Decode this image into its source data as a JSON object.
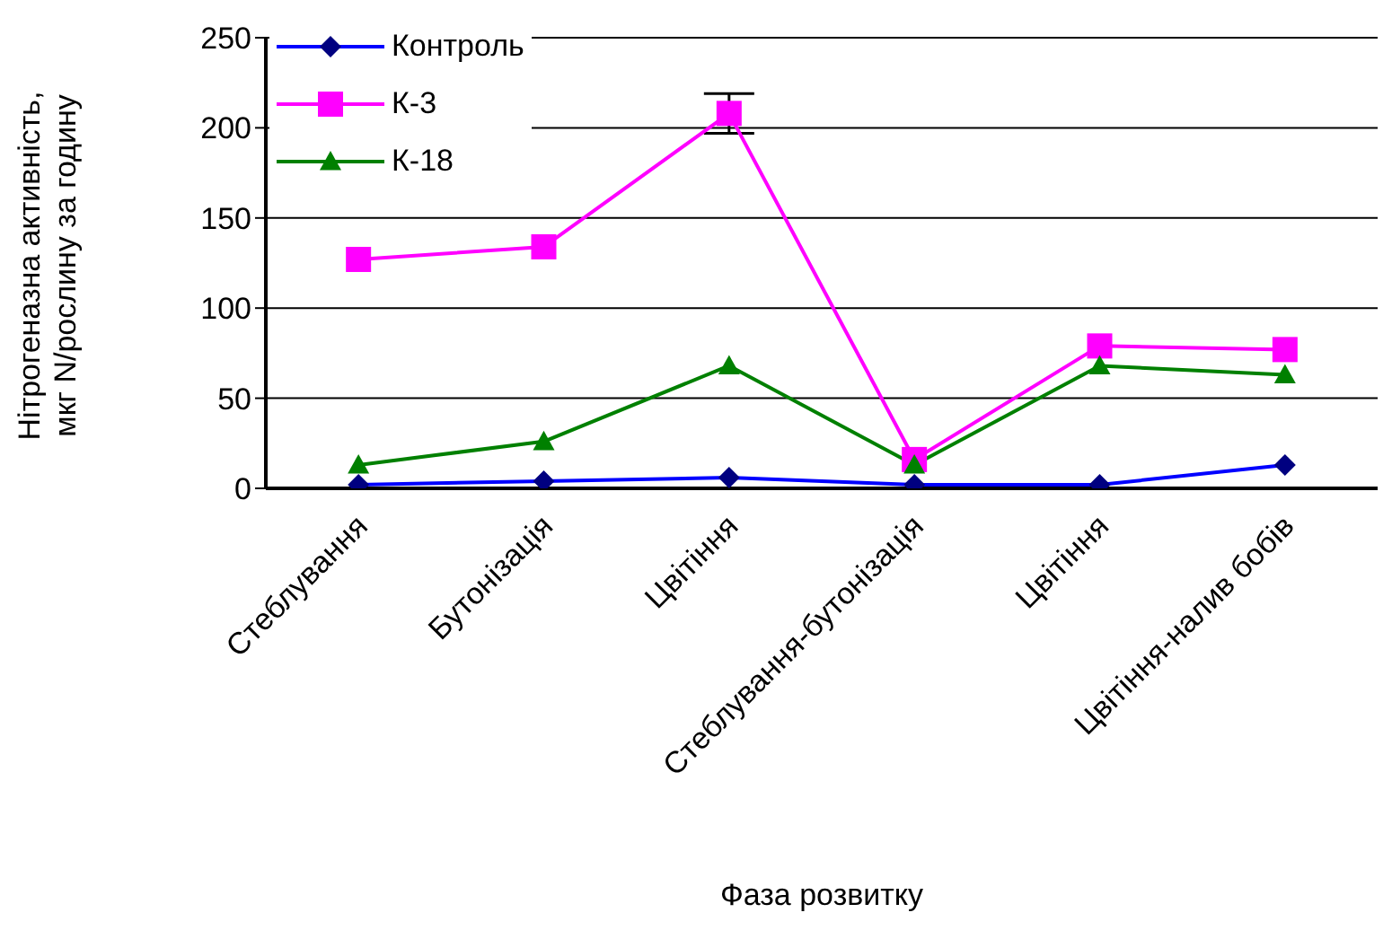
{
  "chart_data": {
    "type": "line",
    "xlabel": "Фаза розвитку",
    "ylabel": "Нітрогеназна активність, мкг N/рослину за годину",
    "categories": [
      "Стеблування",
      "Бутонізація",
      "Цвітіння",
      "Стеблування-бутонізація",
      "Цвітіння",
      "Цвітіння-налив бобів"
    ],
    "series": [
      {
        "name": "Контроль",
        "color": "#0000ff",
        "marker": "diamond",
        "values": [
          2,
          4,
          6,
          2,
          2,
          13
        ]
      },
      {
        "name": "К-3",
        "color": "#ff00ff",
        "marker": "square",
        "values": [
          127,
          134,
          208,
          16,
          79,
          77
        ],
        "errors": [
          null,
          null,
          11,
          null,
          null,
          null
        ]
      },
      {
        "name": "К-18",
        "color": "#008000",
        "marker": "triangle",
        "values": [
          13,
          26,
          68,
          13,
          68,
          63
        ]
      }
    ],
    "ylim": [
      0,
      250
    ],
    "yticks": [
      0,
      50,
      100,
      150,
      200,
      250
    ],
    "grid": "y",
    "legend": "top left"
  }
}
